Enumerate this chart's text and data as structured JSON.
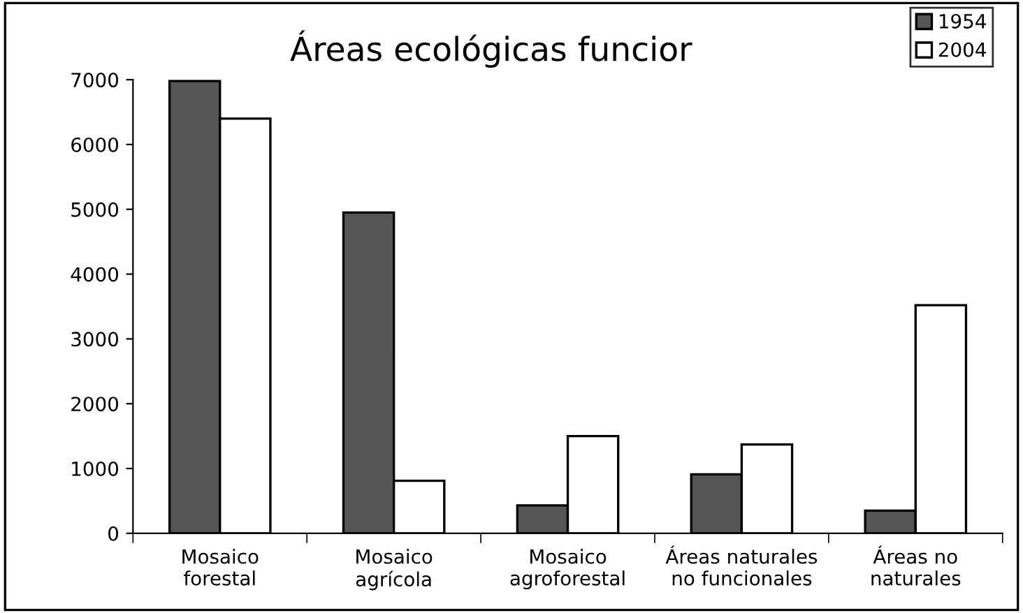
{
  "chart_data": {
    "type": "bar",
    "title": "Áreas ecológicas funcior",
    "categories": [
      "Mosaico\nforestal",
      "Mosaico\nagrícola",
      "Mosaico\nagroforestal",
      "Áreas naturales\nno funcionales",
      "Áreas no\nnaturales"
    ],
    "series": [
      {
        "name": "1954",
        "color": "#555555",
        "values": [
          6980,
          4950,
          430,
          910,
          350
        ]
      },
      {
        "name": "2004",
        "color": "#ffffff",
        "values": [
          6400,
          810,
          1500,
          1370,
          3520
        ]
      }
    ],
    "ylim": [
      0,
      7000
    ],
    "yticks": [
      0,
      1000,
      2000,
      3000,
      4000,
      5000,
      6000,
      7000
    ],
    "grid": false,
    "legend": "top right"
  }
}
